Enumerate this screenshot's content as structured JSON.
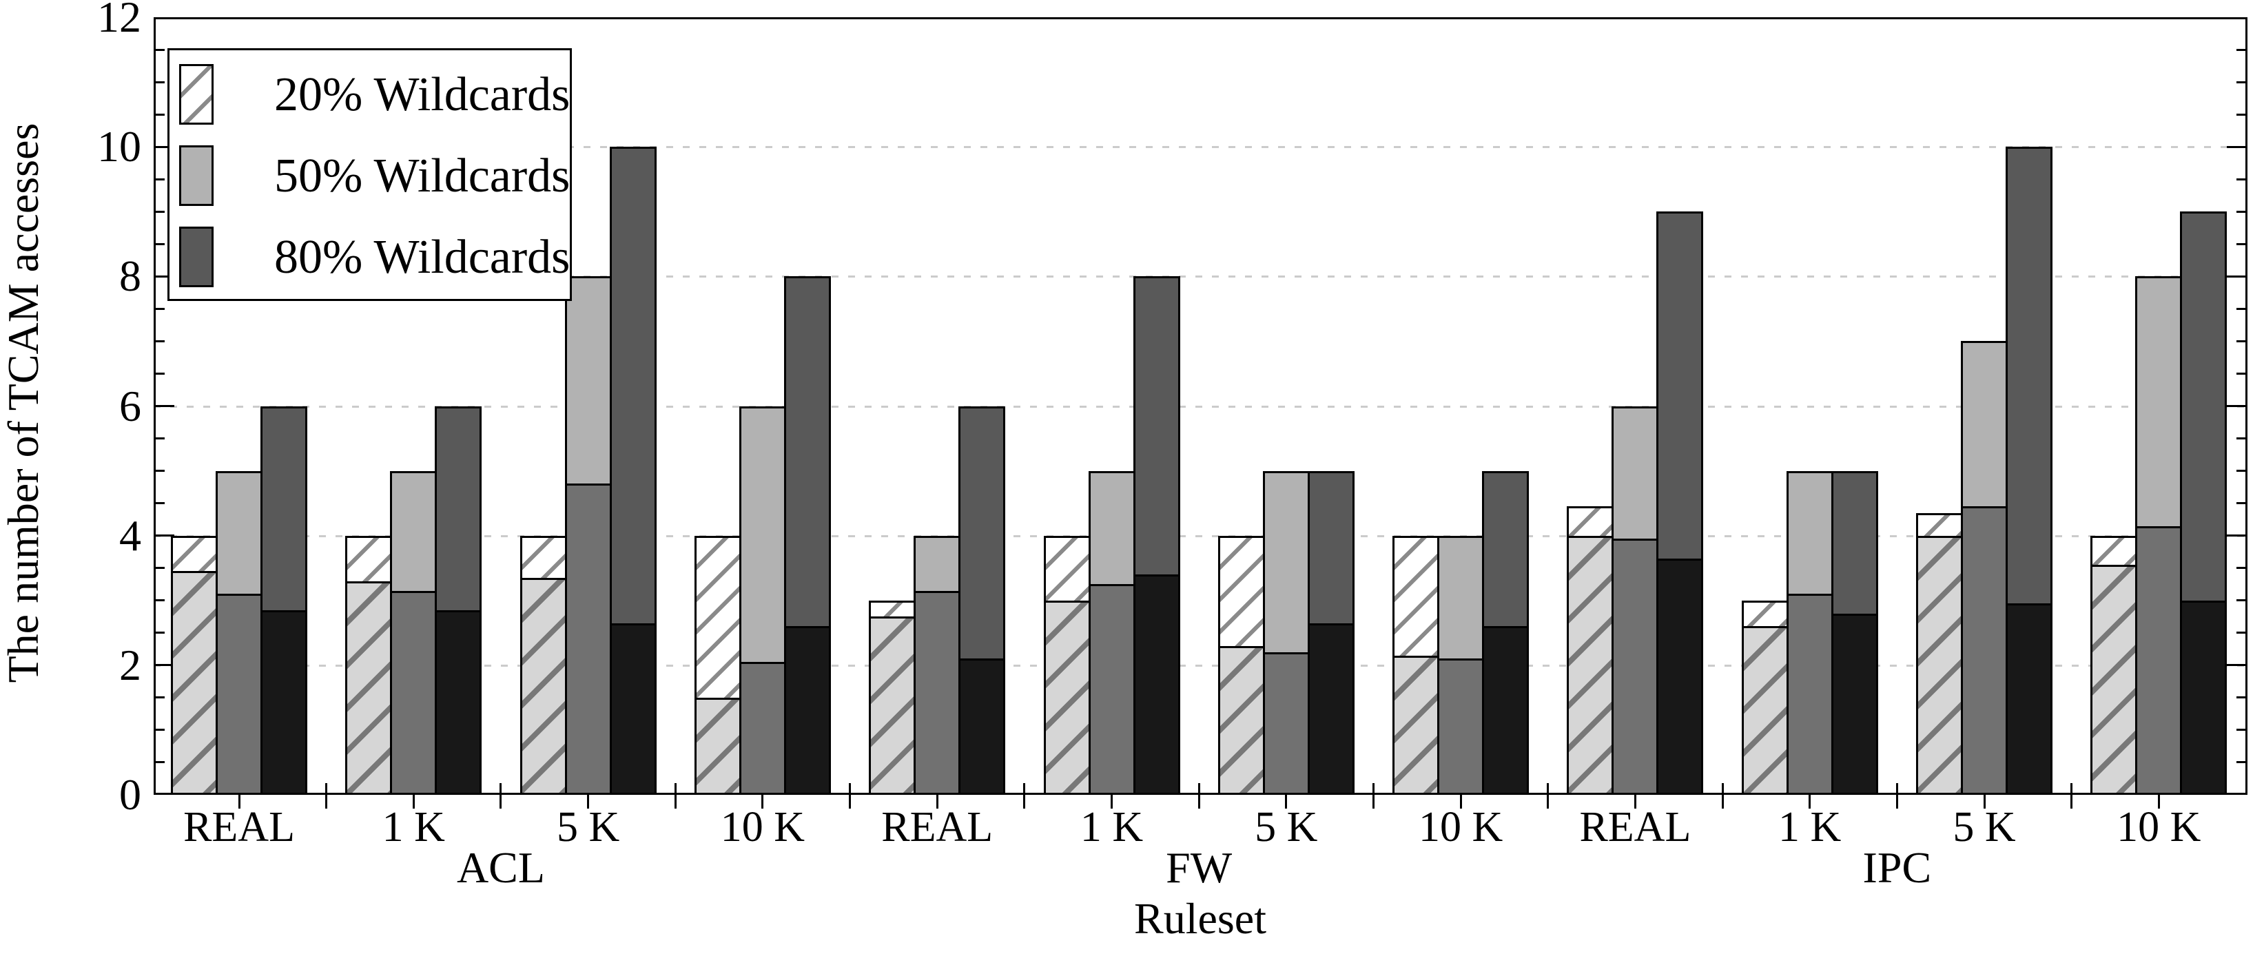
{
  "figure": {
    "background": "#ffffff",
    "axis_color": "#000000",
    "gridline_color": "#cbcbcb"
  },
  "chart_data": {
    "type": "bar",
    "title": "",
    "xlabel": "Ruleset",
    "ylabel": "The number of TCAM accesses",
    "ylim": [
      0,
      12
    ],
    "ytick_major_step": 2,
    "ytick_minor_step": 0.5,
    "y_tick_labels": [
      "0",
      "2",
      "4",
      "6",
      "8",
      "10",
      "12"
    ],
    "grid": {
      "horizontal_dotted_at": [
        2,
        4,
        6,
        8,
        10
      ]
    },
    "legend": {
      "position": "top-left",
      "entries": [
        "20% Wildcards",
        "50% Wildcards",
        "80% Wildcards"
      ]
    },
    "groups": [
      {
        "label": "ACL",
        "categories": [
          "REAL",
          "1 K",
          "5 K",
          "10 K"
        ]
      },
      {
        "label": "FW",
        "categories": [
          "REAL",
          "1 K",
          "5 K",
          "10 K"
        ]
      },
      {
        "label": "IPC",
        "categories": [
          "REAL",
          "1 K",
          "5 K",
          "10 K"
        ]
      }
    ],
    "categories": [
      "REAL",
      "1 K",
      "5 K",
      "10 K",
      "REAL",
      "1 K",
      "5 K",
      "10 K",
      "REAL",
      "1 K",
      "5 K",
      "10 K"
    ],
    "series": [
      {
        "name": "20% Wildcards",
        "outer_style": "hatch-on-white",
        "inner_style": "hatch-on-lightgray",
        "bar_total": [
          4,
          4,
          4,
          4,
          3,
          4,
          4,
          4,
          4.45,
          3,
          4.35,
          4
        ],
        "bar_inner": [
          3.45,
          3.3,
          3.35,
          1.5,
          2.75,
          3.0,
          2.3,
          2.15,
          4.0,
          2.6,
          4.0,
          3.55
        ]
      },
      {
        "name": "50% Wildcards",
        "outer_style": "#b2b2b2",
        "inner_style": "#717171",
        "bar_total": [
          5,
          5,
          8,
          6,
          4,
          5,
          5,
          4,
          6,
          5,
          7,
          8
        ],
        "bar_inner": [
          3.1,
          3.15,
          4.8,
          2.05,
          3.15,
          3.25,
          2.2,
          2.1,
          3.95,
          3.1,
          4.45,
          4.15
        ]
      },
      {
        "name": "80% Wildcards",
        "outer_style": "#595959",
        "inner_style": "#181818",
        "bar_total": [
          6,
          6,
          10,
          8,
          6,
          8,
          5,
          5,
          9,
          5,
          10,
          9
        ],
        "bar_inner": [
          2.85,
          2.85,
          2.65,
          2.6,
          2.1,
          3.4,
          2.65,
          2.6,
          3.65,
          2.8,
          2.95,
          3.0
        ]
      }
    ],
    "note": "Each bar is drawn as a tall light-colored segment (total height) with a darker inner segment rising from the axis; the inner/outer split is not labeled in the figure."
  }
}
